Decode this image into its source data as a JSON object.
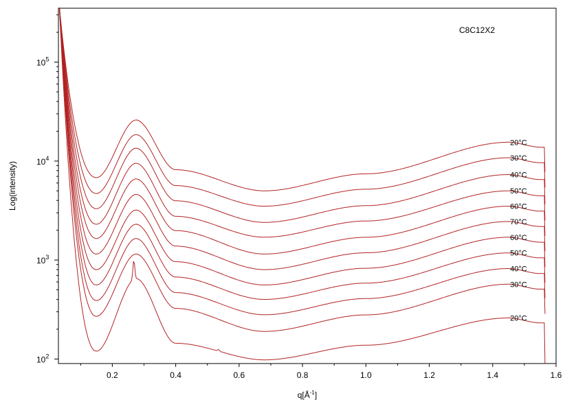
{
  "chart_data": {
    "type": "line",
    "title": "",
    "annotation": "C8C12X2",
    "xlabel_base": "q[Å",
    "xlabel_sup": "-1",
    "xlabel_tail": "]",
    "ylabel": "Log(intensity)",
    "ylog": true,
    "xlim": [
      0.03,
      1.6
    ],
    "ylim": [
      90,
      350000
    ],
    "grid": false,
    "legend": "none",
    "line_color": "#b22222",
    "x_ticks": [
      "0.2",
      "0.4",
      "0.6",
      "0.8",
      "1.0",
      "1.2",
      "1.4",
      "1.6"
    ],
    "x_tick_values": [
      0.2,
      0.4,
      0.6,
      0.8,
      1.0,
      1.2,
      1.4,
      1.6
    ],
    "y_ticks": [
      {
        "base": "10",
        "exp": "2",
        "value": 100
      },
      {
        "base": "10",
        "exp": "3",
        "value": 1000
      },
      {
        "base": "10",
        "exp": "4",
        "value": 10000
      },
      {
        "base": "10",
        "exp": "5",
        "value": 100000
      }
    ],
    "x_end": 1.565,
    "series": [
      {
        "name": "20°C",
        "low": 6800,
        "peak": 26000,
        "min": 5000,
        "plateau": 15500
      },
      {
        "name": "30°C",
        "low": 4700,
        "peak": 18500,
        "min": 3500,
        "plateau": 10800
      },
      {
        "name": "40°C",
        "low": 3300,
        "peak": 13500,
        "min": 2400,
        "plateau": 7300
      },
      {
        "name": "50°C",
        "low": 2300,
        "peak": 9500,
        "min": 1700,
        "plateau": 5000
      },
      {
        "name": "60°C",
        "low": 1650,
        "peak": 6600,
        "min": 1150,
        "plateau": 3500
      },
      {
        "name": "70°C",
        "low": 1150,
        "peak": 4600,
        "min": 800,
        "plateau": 2450
      },
      {
        "name": "60°C",
        "low": 800,
        "peak": 3200,
        "min": 560,
        "plateau": 1700
      },
      {
        "name": "50°C",
        "low": 560,
        "peak": 2300,
        "min": 400,
        "plateau": 1180
      },
      {
        "name": "40°C",
        "low": 390,
        "peak": 1650,
        "min": 280,
        "plateau": 820
      },
      {
        "name": "30°C",
        "low": 270,
        "peak": 1150,
        "min": 190,
        "plateau": 570
      },
      {
        "name": "20°C",
        "low": 120,
        "peak": 650,
        "min": 98,
        "plateau": 260,
        "sharp_peaks": [
          {
            "x": 0.268,
            "y": 1000
          },
          {
            "x": 0.535,
            "y": 125
          }
        ]
      }
    ]
  }
}
